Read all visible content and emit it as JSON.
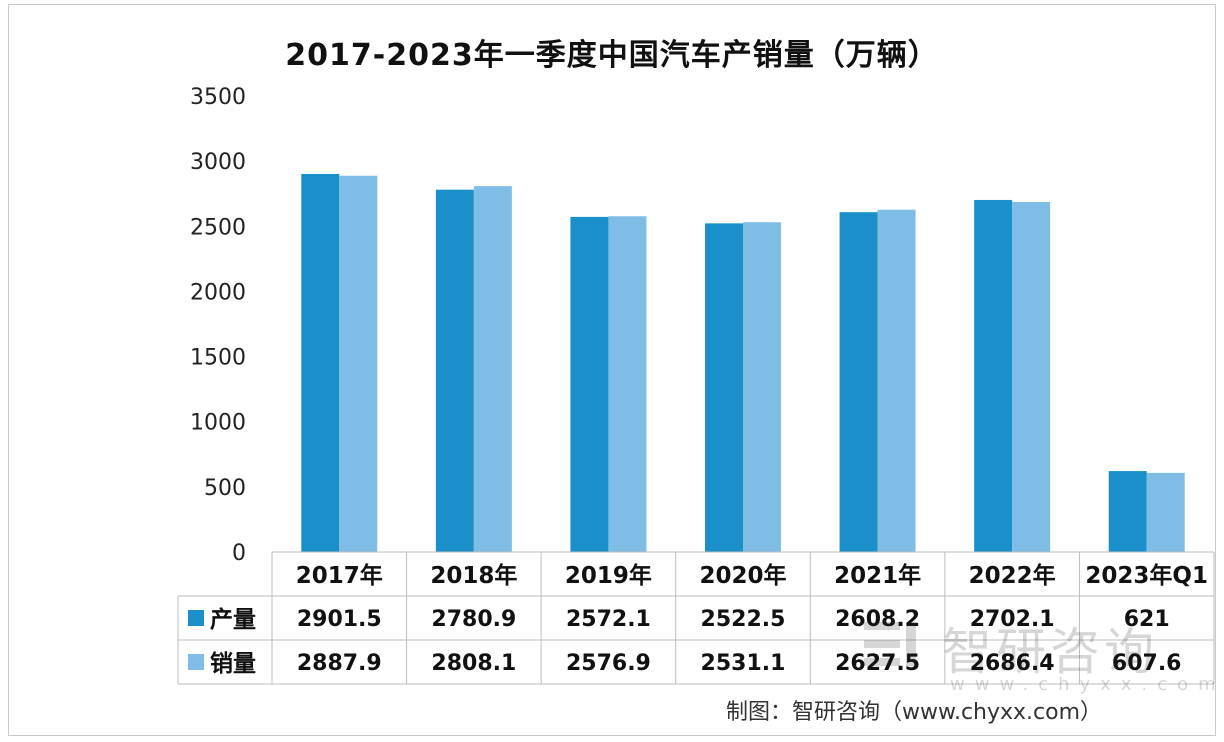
{
  "chart_data": {
    "type": "bar",
    "title": "2017-2023年一季度中国汽车产销量（万辆）",
    "categories": [
      "2017年",
      "2018年",
      "2019年",
      "2020年",
      "2021年",
      "2022年",
      "2023年Q1"
    ],
    "series": [
      {
        "name": "产量",
        "color": "#1a8fc9",
        "values": [
          2901.5,
          2780.9,
          2572.1,
          2522.5,
          2608.2,
          2702.1,
          621
        ]
      },
      {
        "name": "销量",
        "color": "#7fbde6",
        "values": [
          2887.9,
          2808.1,
          2576.9,
          2531.1,
          2627.5,
          2686.4,
          607.6
        ]
      }
    ],
    "value_labels": [
      [
        "2901.5",
        "2780.9",
        "2572.1",
        "2522.5",
        "2608.2",
        "2702.1",
        "621"
      ],
      [
        "2887.9",
        "2808.1",
        "2576.9",
        "2531.1",
        "2627.5",
        "2686.4",
        "607.6"
      ]
    ],
    "ylim": [
      0,
      3500
    ],
    "yticks": [
      0,
      500,
      1000,
      1500,
      2000,
      2500,
      3000,
      3500
    ],
    "grid": false,
    "legend": "data-table",
    "source": "制图：智研咨询（www.chyxx.com）"
  },
  "watermark": {
    "name": "智研咨询",
    "url": "www.chyxx.com"
  }
}
